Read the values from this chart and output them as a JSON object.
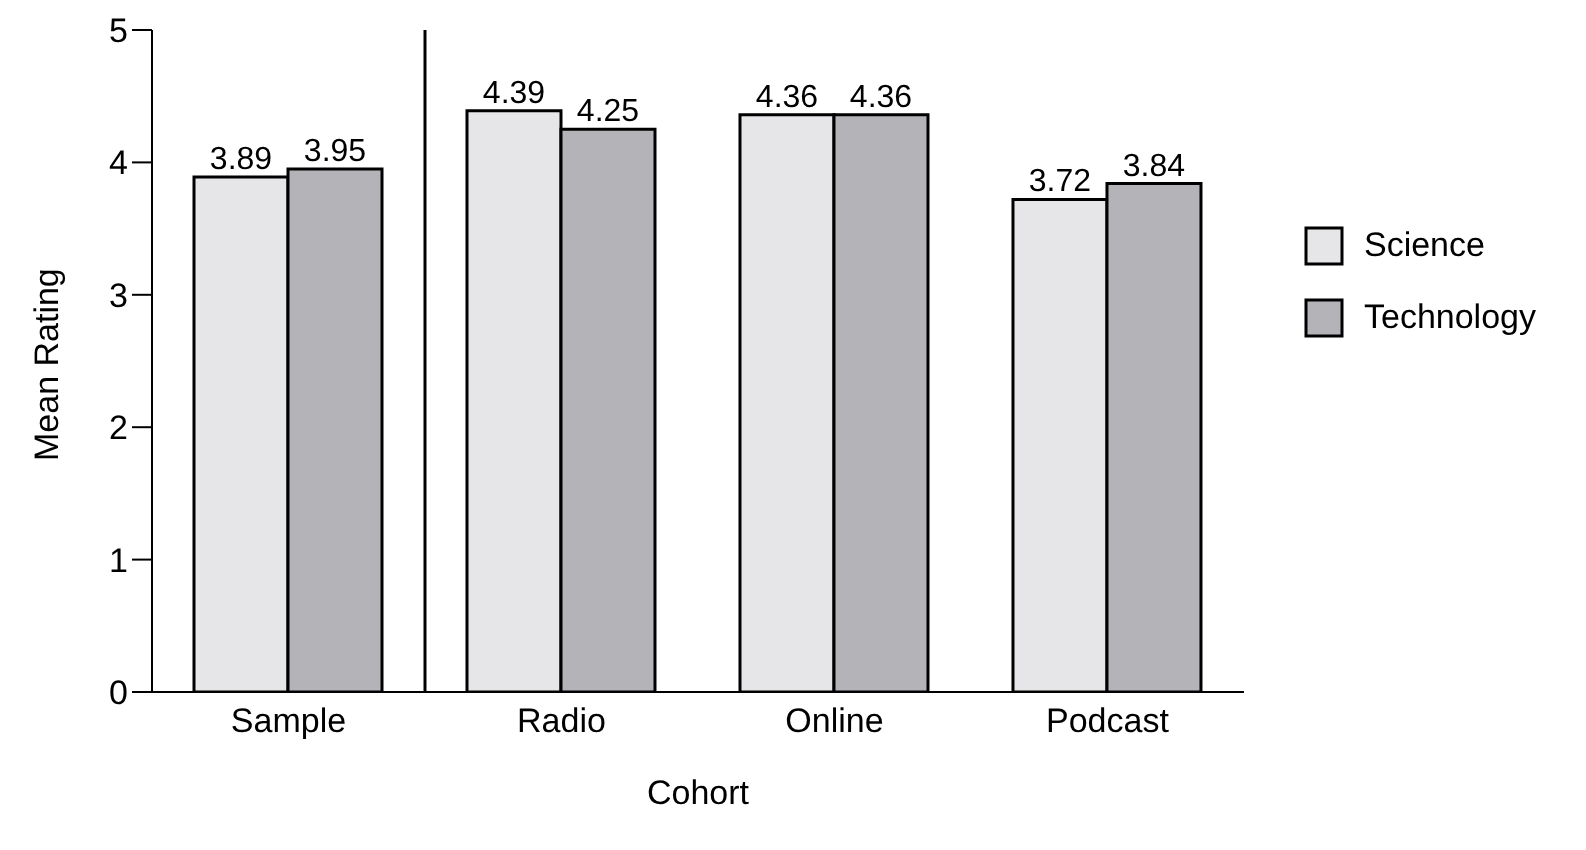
{
  "chart_data": {
    "type": "bar",
    "xlabel": "Cohort",
    "ylabel": "Mean Rating",
    "categories": [
      "Sample",
      "Radio",
      "Online",
      "Podcast"
    ],
    "series": [
      {
        "name": "Science",
        "color": "#e6e6e8",
        "values": [
          3.89,
          4.39,
          4.36,
          3.72
        ]
      },
      {
        "name": "Technology",
        "color": "#b4b4b8",
        "values": [
          3.95,
          4.25,
          4.36,
          3.84
        ]
      }
    ],
    "ylim": [
      0,
      5
    ],
    "yticks": [
      0,
      1,
      2,
      3,
      4,
      5
    ],
    "grid": false,
    "legend": "right",
    "data_labels": true
  }
}
